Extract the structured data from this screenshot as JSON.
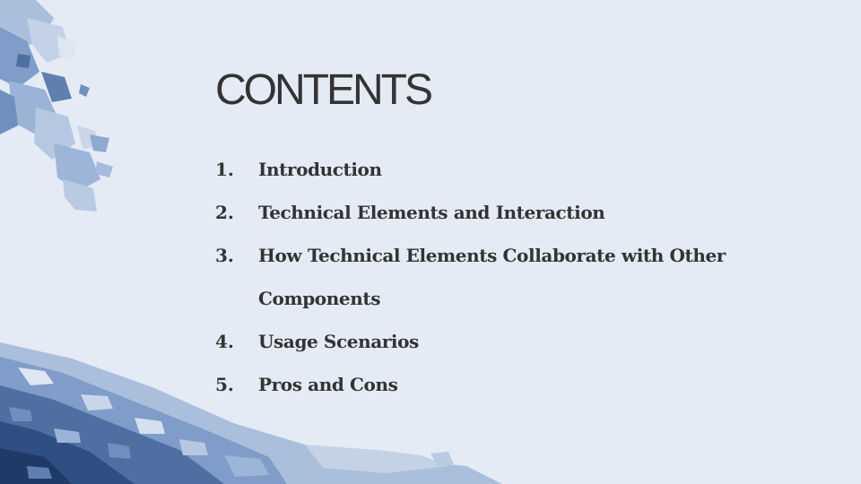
{
  "slide": {
    "title": "CONTENTS",
    "items": [
      {
        "number": "1.",
        "label": "Introduction"
      },
      {
        "number": "2.",
        "label": "Technical Elements and Interaction"
      },
      {
        "number": "3.",
        "label": "How Technical Elements Collaborate with Other Components"
      },
      {
        "number": "4.",
        "label": "Usage Scenarios"
      },
      {
        "number": "5.",
        "label": "Pros and Cons"
      }
    ]
  },
  "colors": {
    "background": "#e4ebf5",
    "text": "#333333",
    "accent_dark": "#3c5f8c",
    "accent_light": "#a9bfdc"
  },
  "decorations": [
    "watercolor-splash-top-left",
    "watercolor-wave-bottom-left"
  ]
}
